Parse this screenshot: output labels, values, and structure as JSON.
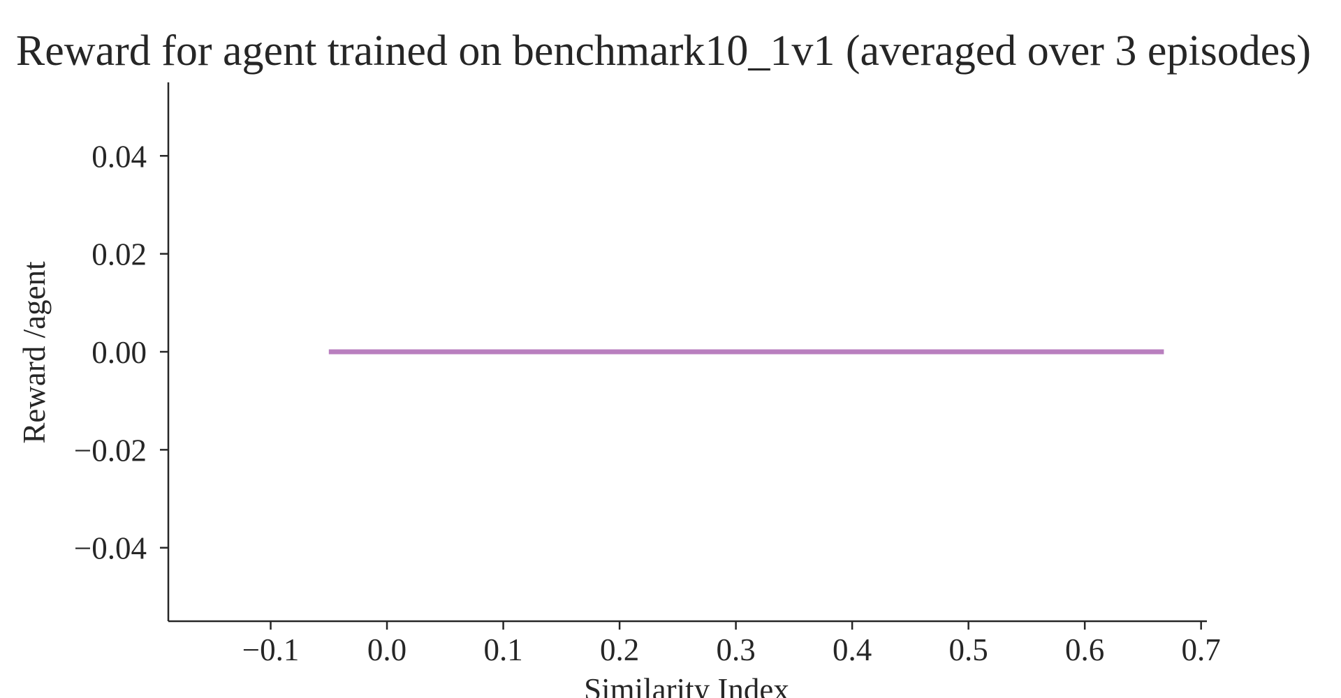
{
  "chart_data": {
    "type": "line",
    "title": "Reward for agent trained on benchmark10_1v1 (averaged over 3 episodes)",
    "xlabel": "Similarity Index",
    "ylabel": "Reward /agent",
    "xlim": [
      -0.188,
      0.705
    ],
    "ylim": [
      -0.055,
      0.055
    ],
    "x_ticks": [
      -0.1,
      0.0,
      0.1,
      0.2,
      0.3,
      0.4,
      0.5,
      0.6,
      0.7
    ],
    "x_tick_labels": [
      "−0.1",
      "0.0",
      "0.1",
      "0.2",
      "0.3",
      "0.4",
      "0.5",
      "0.6",
      "0.7"
    ],
    "y_ticks": [
      0.04,
      0.02,
      0.0,
      -0.02,
      -0.04
    ],
    "y_tick_labels": [
      "0.04",
      "0.02",
      "0.00",
      "−0.02",
      "−0.04"
    ],
    "grid": false,
    "legend": "none",
    "series": [
      {
        "color": "#b97fbf",
        "x": [
          -0.05,
          0.668
        ],
        "y": [
          0.0,
          0.0
        ]
      }
    ]
  }
}
